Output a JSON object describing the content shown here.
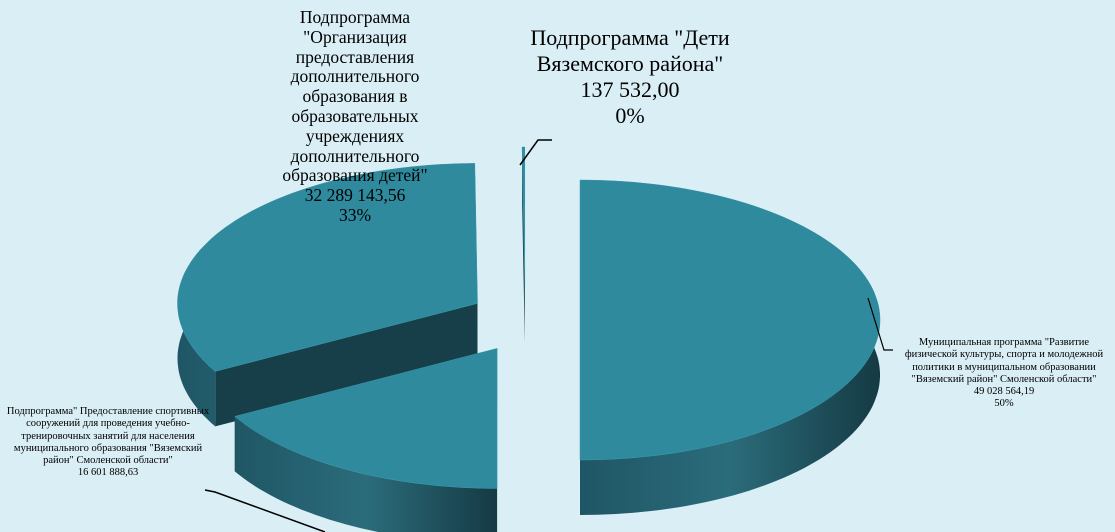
{
  "chart_data": {
    "type": "pie",
    "categories": [
      "Муниципальная программа \"Развитие физической культуры, спорта и молодежной политики в муниципальном образовании \"Вяземский район\" Смоленской области\"",
      "Подпрограмма\" Предоставление спортивных сооружений для проведения учебно-тренировочных занятий для населения муниципального образования \"Вяземский район\" Смоленской области\"",
      "Подпрограмма \"Организация предоставления дополнительного образования в образовательных учреждениях дополнительного образования детей\"",
      "Подпрограмма \"Дети Вяземского района\""
    ],
    "values": [
      49028564.19,
      16601888.63,
      32289143.56,
      137532.0
    ],
    "value_labels": [
      "49 028 564,19",
      "16 601 888,63",
      "32 289 143,56",
      "137 532,00"
    ],
    "percent_labels": [
      "50%",
      null,
      "33%",
      "0%"
    ],
    "color": "#2f8a9e"
  }
}
